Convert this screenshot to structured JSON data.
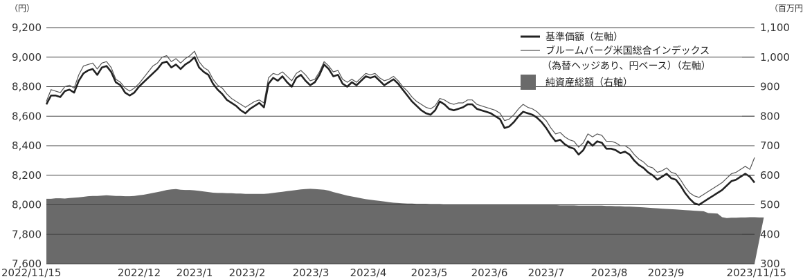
{
  "chart_data": {
    "type": "area",
    "left_unit": "（円）",
    "right_unit": "（百万円）",
    "left_axis": {
      "min": 7600,
      "max": 9200,
      "ticks": [
        "9,200",
        "9,000",
        "8,800",
        "8,600",
        "8,400",
        "8,200",
        "8,000",
        "7,800",
        "7,600"
      ]
    },
    "right_axis": {
      "min": 300,
      "max": 1100,
      "ticks": [
        "1,100",
        "1,000",
        "900",
        "800",
        "700",
        "600",
        "500",
        "400",
        "300"
      ]
    },
    "x_ticks": [
      "2022/11/15",
      "2022/12",
      "2023/1",
      "2023/2",
      "2023/3",
      "2023/4",
      "2023/5",
      "2023/6",
      "2023/7",
      "2023/8",
      "2023/9",
      "2023/11/15"
    ],
    "legend": {
      "nav": "基準価額（左軸）",
      "bench_line1": "ブルームバーグ米国総合インデックス",
      "bench_line2": "（為替ヘッジあり、円ベース）（左軸）",
      "assets": "純資産総額（右軸）"
    },
    "colors": {
      "nav": "#222222",
      "benchmark": "#555555",
      "assets": "#6a6a6a",
      "grid": "#444444"
    },
    "series": [
      {
        "name": "基準価額（左軸）",
        "values": [
          8680,
          8740,
          8740,
          8730,
          8770,
          8780,
          8760,
          8840,
          8890,
          8910,
          8920,
          8880,
          8930,
          8940,
          8900,
          8830,
          8810,
          8760,
          8740,
          8760,
          8800,
          8830,
          8860,
          8890,
          8920,
          8960,
          8970,
          8930,
          8950,
          8920,
          8950,
          8970,
          9000,
          8930,
          8900,
          8880,
          8820,
          8780,
          8750,
          8710,
          8690,
          8670,
          8640,
          8620,
          8650,
          8670,
          8690,
          8660,
          8820,
          8860,
          8840,
          8870,
          8830,
          8800,
          8860,
          8880,
          8840,
          8810,
          8830,
          8880,
          8950,
          8920,
          8870,
          8880,
          8820,
          8800,
          8830,
          8810,
          8840,
          8870,
          8860,
          8870,
          8840,
          8810,
          8830,
          8850,
          8820,
          8780,
          8740,
          8700,
          8670,
          8640,
          8620,
          8610,
          8640,
          8700,
          8680,
          8650,
          8640,
          8650,
          8660,
          8680,
          8680,
          8650,
          8640,
          8630,
          8620,
          8600,
          8580,
          8520,
          8530,
          8560,
          8600,
          8630,
          8620,
          8610,
          8590,
          8560,
          8520,
          8470,
          8430,
          8440,
          8410,
          8390,
          8380,
          8340,
          8370,
          8430,
          8400,
          8430,
          8420,
          8380,
          8380,
          8370,
          8350,
          8360,
          8340,
          8300,
          8270,
          8250,
          8220,
          8200,
          8170,
          8190,
          8210,
          8180,
          8170,
          8130,
          8080,
          8040,
          8010,
          8000,
          8020,
          8040,
          8060,
          8080,
          8100,
          8130,
          8160,
          8170,
          8190,
          8210,
          8190,
          8150
        ]
      },
      {
        "name": "ブルームバーグ米国総合インデックス（為替ヘッジあり、円ベース）（左軸）",
        "values": [
          8700,
          8780,
          8770,
          8760,
          8800,
          8810,
          8790,
          8880,
          8940,
          8950,
          8960,
          8920,
          8960,
          8970,
          8930,
          8850,
          8830,
          8790,
          8770,
          8790,
          8820,
          8860,
          8900,
          8940,
          8960,
          9000,
          9010,
          8970,
          8990,
          8960,
          8990,
          9010,
          9040,
          8970,
          8930,
          8910,
          8850,
          8810,
          8790,
          8750,
          8720,
          8700,
          8680,
          8660,
          8680,
          8700,
          8710,
          8690,
          8860,
          8890,
          8880,
          8900,
          8870,
          8840,
          8890,
          8910,
          8880,
          8840,
          8850,
          8900,
          8970,
          8940,
          8900,
          8910,
          8850,
          8830,
          8850,
          8830,
          8860,
          8890,
          8880,
          8890,
          8860,
          8840,
          8850,
          8870,
          8840,
          8800,
          8770,
          8730,
          8700,
          8680,
          8660,
          8650,
          8670,
          8720,
          8710,
          8690,
          8680,
          8690,
          8690,
          8710,
          8710,
          8680,
          8670,
          8660,
          8650,
          8640,
          8620,
          8570,
          8580,
          8610,
          8650,
          8680,
          8660,
          8650,
          8630,
          8600,
          8570,
          8520,
          8480,
          8490,
          8460,
          8440,
          8430,
          8390,
          8420,
          8480,
          8460,
          8480,
          8470,
          8430,
          8430,
          8420,
          8400,
          8400,
          8380,
          8340,
          8310,
          8290,
          8260,
          8250,
          8220,
          8230,
          8250,
          8220,
          8210,
          8170,
          8120,
          8080,
          8060,
          8050,
          8070,
          8090,
          8110,
          8130,
          8150,
          8180,
          8210,
          8220,
          8240,
          8260,
          8240,
          8320
        ]
      },
      {
        "name": "純資産総額（右軸）",
        "values": [
          520,
          520,
          522,
          522,
          521,
          523,
          524,
          525,
          527,
          529,
          530,
          530,
          531,
          532,
          531,
          530,
          530,
          529,
          529,
          530,
          532,
          534,
          537,
          540,
          543,
          546,
          550,
          552,
          553,
          551,
          550,
          550,
          549,
          547,
          545,
          543,
          541,
          540,
          540,
          539,
          539,
          538,
          538,
          537,
          537,
          537,
          537,
          537,
          538,
          540,
          542,
          544,
          546,
          548,
          550,
          552,
          553,
          554,
          553,
          552,
          551,
          548,
          543,
          539,
          535,
          531,
          528,
          525,
          522,
          519,
          517,
          515,
          513,
          511,
          509,
          507,
          506,
          505,
          504,
          504,
          503,
          503,
          503,
          502,
          502,
          502,
          501,
          501,
          501,
          501,
          500,
          500,
          500,
          500,
          500,
          499,
          499,
          499,
          499,
          500,
          500,
          500,
          500,
          500,
          500,
          500,
          499,
          499,
          499,
          499,
          499,
          498,
          498,
          498,
          498,
          497,
          497,
          497,
          497,
          497,
          497,
          496,
          496,
          495,
          495,
          494,
          494,
          493,
          492,
          491,
          490,
          489,
          488,
          487,
          486,
          485,
          484,
          483,
          482,
          481,
          480,
          479,
          478,
          472,
          471,
          470,
          458,
          455,
          456,
          456,
          457,
          457,
          458,
          458,
          457,
          457
        ]
      }
    ]
  }
}
